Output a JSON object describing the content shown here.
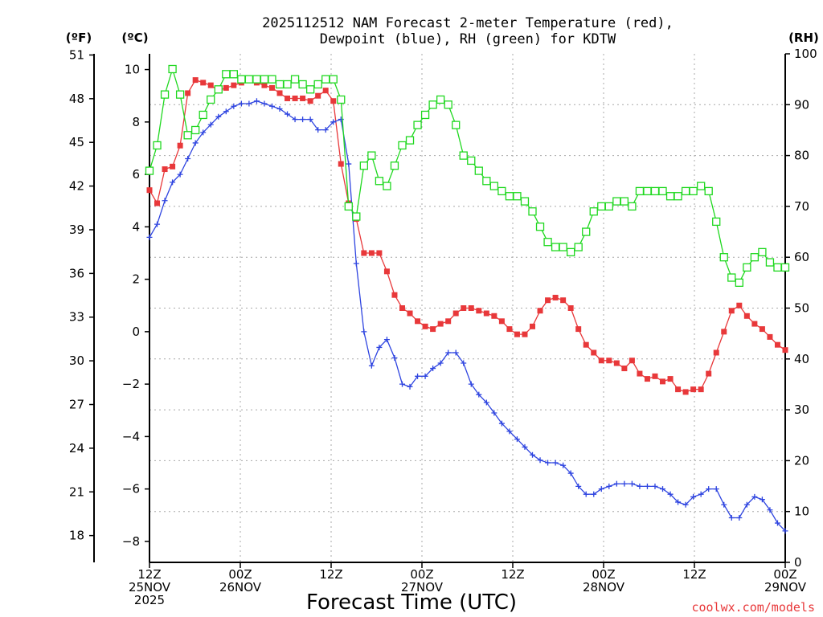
{
  "chart_data": {
    "type": "line",
    "title_line1": "2025112512 NAM Forecast 2-meter Temperature (red),",
    "title_line2": "Dewpoint (blue), RH (green) for KDTW",
    "left_axis_far": {
      "unit": "(ºF)",
      "ticks": [
        "51",
        "48",
        "45",
        "42",
        "39",
        "36",
        "33",
        "30",
        "27",
        "24",
        "21",
        "18"
      ],
      "tick_values": [
        51,
        48,
        45,
        42,
        39,
        36,
        33,
        30,
        27,
        24,
        21,
        18
      ]
    },
    "left_axis": {
      "unit": "(ºC)",
      "range": [
        -8.8,
        10.6
      ],
      "ticks": [
        "10",
        "8",
        "6",
        "4",
        "2",
        "0",
        "−2",
        "−4",
        "−6",
        "−8"
      ],
      "tick_values": [
        10,
        8,
        6,
        4,
        2,
        0,
        -2,
        -4,
        -6,
        -8
      ]
    },
    "right_axis": {
      "unit": "(RH)",
      "range": [
        0,
        100
      ],
      "ticks": [
        "100",
        "90",
        "80",
        "70",
        "60",
        "50",
        "40",
        "30",
        "20",
        "10",
        "0"
      ],
      "tick_values": [
        100,
        90,
        80,
        70,
        60,
        50,
        40,
        30,
        20,
        10,
        0
      ]
    },
    "x_range_hours": [
      0,
      84
    ],
    "x_ticks": [
      {
        "hour": 0,
        "top": "12Z",
        "mid": "25NOV",
        "bottom": "2025"
      },
      {
        "hour": 12,
        "top": "00Z",
        "mid": "26NOV",
        "bottom": ""
      },
      {
        "hour": 24,
        "top": "12Z",
        "mid": "",
        "bottom": ""
      },
      {
        "hour": 36,
        "top": "00Z",
        "mid": "27NOV",
        "bottom": ""
      },
      {
        "hour": 48,
        "top": "12Z",
        "mid": "",
        "bottom": ""
      },
      {
        "hour": 60,
        "top": "00Z",
        "mid": "28NOV",
        "bottom": ""
      },
      {
        "hour": 72,
        "top": "12Z",
        "mid": "",
        "bottom": ""
      },
      {
        "hour": 84,
        "top": "00Z",
        "mid": "29NOV",
        "bottom": ""
      }
    ],
    "xlabel": "Forecast Time (UTC)",
    "credit": "coolwx.com/models",
    "series": [
      {
        "name": "2-meter Temperature",
        "axis": "C",
        "color": "#e8383a",
        "marker": "filled-square",
        "values": [
          5.4,
          4.9,
          6.2,
          6.3,
          7.1,
          9.1,
          9.6,
          9.5,
          9.4,
          9.2,
          9.3,
          9.4,
          9.5,
          9.6,
          9.5,
          9.4,
          9.3,
          9.1,
          8.9,
          8.9,
          8.9,
          8.8,
          9.0,
          9.2,
          8.8,
          6.4,
          4.9,
          4.3,
          3.0,
          3.0,
          3.0,
          2.3,
          1.4,
          0.9,
          0.7,
          0.4,
          0.2,
          0.1,
          0.3,
          0.4,
          0.7,
          0.9,
          0.9,
          0.8,
          0.7,
          0.6,
          0.4,
          0.1,
          -0.1,
          -0.1,
          0.2,
          0.8,
          1.2,
          1.3,
          1.2,
          0.9,
          0.1,
          -0.5,
          -0.8,
          -1.1,
          -1.1,
          -1.2,
          -1.4,
          -1.1,
          -1.6,
          -1.8,
          -1.7,
          -1.9,
          -1.8,
          -2.2,
          -2.3,
          -2.2,
          -2.2,
          -1.6,
          -0.8,
          0.0,
          0.8,
          1.0,
          0.6,
          0.3,
          0.1,
          -0.2,
          -0.5,
          -0.7
        ]
      },
      {
        "name": "Dewpoint",
        "axis": "C",
        "color": "#2e44e0",
        "marker": "plus",
        "values": [
          3.6,
          4.1,
          5.0,
          5.7,
          6.0,
          6.6,
          7.2,
          7.6,
          7.9,
          8.2,
          8.4,
          8.6,
          8.7,
          8.7,
          8.8,
          8.7,
          8.6,
          8.5,
          8.3,
          8.1,
          8.1,
          8.1,
          7.7,
          7.7,
          8.0,
          8.1,
          6.4,
          2.6,
          0.0,
          -1.3,
          -0.6,
          -0.3,
          -1.0,
          -2.0,
          -2.1,
          -1.7,
          -1.7,
          -1.4,
          -1.2,
          -0.8,
          -0.8,
          -1.2,
          -2.0,
          -2.4,
          -2.7,
          -3.1,
          -3.5,
          -3.8,
          -4.1,
          -4.4,
          -4.7,
          -4.9,
          -5.0,
          -5.0,
          -5.1,
          -5.4,
          -5.9,
          -6.2,
          -6.2,
          -6.0,
          -5.9,
          -5.8,
          -5.8,
          -5.8,
          -5.9,
          -5.9,
          -5.9,
          -6.0,
          -6.2,
          -6.5,
          -6.6,
          -6.3,
          -6.2,
          -6.0,
          -6.0,
          -6.6,
          -7.1,
          -7.1,
          -6.6,
          -6.3,
          -6.4,
          -6.8,
          -7.3,
          -7.6
        ]
      },
      {
        "name": "RH",
        "axis": "RH",
        "color": "#1fd81f",
        "marker": "open-square",
        "values": [
          77,
          82,
          92,
          97,
          92,
          84,
          85,
          88,
          91,
          93,
          96,
          96,
          95,
          95,
          95,
          95,
          95,
          94,
          94,
          95,
          94,
          93,
          94,
          95,
          95,
          91,
          70,
          68,
          78,
          80,
          75,
          74,
          78,
          82,
          83,
          86,
          88,
          90,
          91,
          90,
          86,
          80,
          79,
          77,
          75,
          74,
          73,
          72,
          72,
          71,
          69,
          66,
          63,
          62,
          62,
          61,
          62,
          65,
          69,
          70,
          70,
          71,
          71,
          70,
          73,
          73,
          73,
          73,
          72,
          72,
          73,
          73,
          74,
          73,
          67,
          60,
          56,
          55,
          58,
          60,
          61,
          59,
          58,
          58
        ]
      }
    ]
  }
}
